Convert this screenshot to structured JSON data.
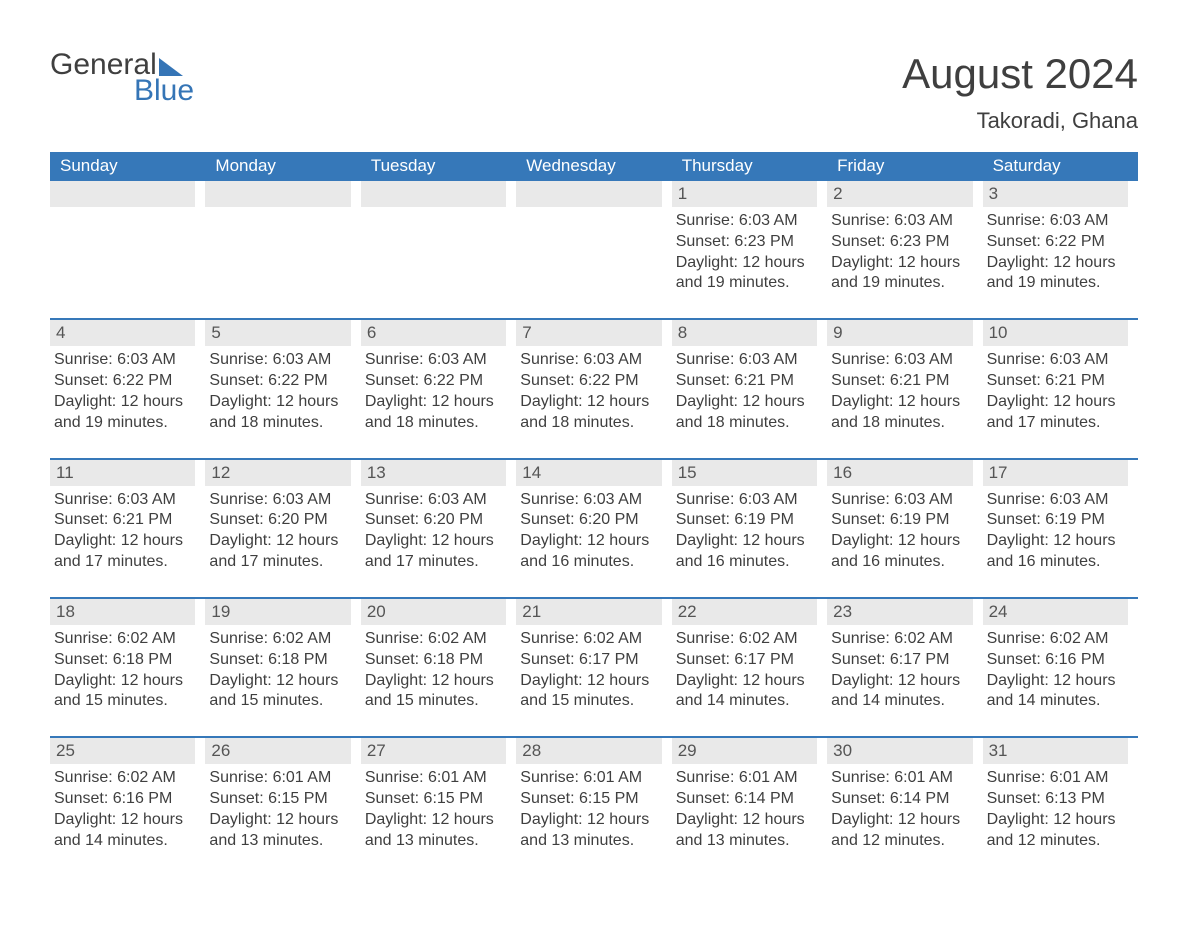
{
  "logo": {
    "word1": "General",
    "word2": "Blue"
  },
  "title": "August 2024",
  "location": "Takoradi, Ghana",
  "colors": {
    "header_bg": "#3678b9",
    "header_text": "#ffffff",
    "rule": "#3678b9",
    "daynum_bg": "#e9e9e9",
    "body_text": "#3f3f3f",
    "logo_blue": "#3575b6"
  },
  "days_of_week": [
    "Sunday",
    "Monday",
    "Tuesday",
    "Wednesday",
    "Thursday",
    "Friday",
    "Saturday"
  ],
  "weeks": [
    [
      null,
      null,
      null,
      null,
      {
        "n": "1",
        "sunrise": "6:03 AM",
        "sunset": "6:23 PM",
        "daylight": "12 hours and 19 minutes."
      },
      {
        "n": "2",
        "sunrise": "6:03 AM",
        "sunset": "6:23 PM",
        "daylight": "12 hours and 19 minutes."
      },
      {
        "n": "3",
        "sunrise": "6:03 AM",
        "sunset": "6:22 PM",
        "daylight": "12 hours and 19 minutes."
      }
    ],
    [
      {
        "n": "4",
        "sunrise": "6:03 AM",
        "sunset": "6:22 PM",
        "daylight": "12 hours and 19 minutes."
      },
      {
        "n": "5",
        "sunrise": "6:03 AM",
        "sunset": "6:22 PM",
        "daylight": "12 hours and 18 minutes."
      },
      {
        "n": "6",
        "sunrise": "6:03 AM",
        "sunset": "6:22 PM",
        "daylight": "12 hours and 18 minutes."
      },
      {
        "n": "7",
        "sunrise": "6:03 AM",
        "sunset": "6:22 PM",
        "daylight": "12 hours and 18 minutes."
      },
      {
        "n": "8",
        "sunrise": "6:03 AM",
        "sunset": "6:21 PM",
        "daylight": "12 hours and 18 minutes."
      },
      {
        "n": "9",
        "sunrise": "6:03 AM",
        "sunset": "6:21 PM",
        "daylight": "12 hours and 18 minutes."
      },
      {
        "n": "10",
        "sunrise": "6:03 AM",
        "sunset": "6:21 PM",
        "daylight": "12 hours and 17 minutes."
      }
    ],
    [
      {
        "n": "11",
        "sunrise": "6:03 AM",
        "sunset": "6:21 PM",
        "daylight": "12 hours and 17 minutes."
      },
      {
        "n": "12",
        "sunrise": "6:03 AM",
        "sunset": "6:20 PM",
        "daylight": "12 hours and 17 minutes."
      },
      {
        "n": "13",
        "sunrise": "6:03 AM",
        "sunset": "6:20 PM",
        "daylight": "12 hours and 17 minutes."
      },
      {
        "n": "14",
        "sunrise": "6:03 AM",
        "sunset": "6:20 PM",
        "daylight": "12 hours and 16 minutes."
      },
      {
        "n": "15",
        "sunrise": "6:03 AM",
        "sunset": "6:19 PM",
        "daylight": "12 hours and 16 minutes."
      },
      {
        "n": "16",
        "sunrise": "6:03 AM",
        "sunset": "6:19 PM",
        "daylight": "12 hours and 16 minutes."
      },
      {
        "n": "17",
        "sunrise": "6:03 AM",
        "sunset": "6:19 PM",
        "daylight": "12 hours and 16 minutes."
      }
    ],
    [
      {
        "n": "18",
        "sunrise": "6:02 AM",
        "sunset": "6:18 PM",
        "daylight": "12 hours and 15 minutes."
      },
      {
        "n": "19",
        "sunrise": "6:02 AM",
        "sunset": "6:18 PM",
        "daylight": "12 hours and 15 minutes."
      },
      {
        "n": "20",
        "sunrise": "6:02 AM",
        "sunset": "6:18 PM",
        "daylight": "12 hours and 15 minutes."
      },
      {
        "n": "21",
        "sunrise": "6:02 AM",
        "sunset": "6:17 PM",
        "daylight": "12 hours and 15 minutes."
      },
      {
        "n": "22",
        "sunrise": "6:02 AM",
        "sunset": "6:17 PM",
        "daylight": "12 hours and 14 minutes."
      },
      {
        "n": "23",
        "sunrise": "6:02 AM",
        "sunset": "6:17 PM",
        "daylight": "12 hours and 14 minutes."
      },
      {
        "n": "24",
        "sunrise": "6:02 AM",
        "sunset": "6:16 PM",
        "daylight": "12 hours and 14 minutes."
      }
    ],
    [
      {
        "n": "25",
        "sunrise": "6:02 AM",
        "sunset": "6:16 PM",
        "daylight": "12 hours and 14 minutes."
      },
      {
        "n": "26",
        "sunrise": "6:01 AM",
        "sunset": "6:15 PM",
        "daylight": "12 hours and 13 minutes."
      },
      {
        "n": "27",
        "sunrise": "6:01 AM",
        "sunset": "6:15 PM",
        "daylight": "12 hours and 13 minutes."
      },
      {
        "n": "28",
        "sunrise": "6:01 AM",
        "sunset": "6:15 PM",
        "daylight": "12 hours and 13 minutes."
      },
      {
        "n": "29",
        "sunrise": "6:01 AM",
        "sunset": "6:14 PM",
        "daylight": "12 hours and 13 minutes."
      },
      {
        "n": "30",
        "sunrise": "6:01 AM",
        "sunset": "6:14 PM",
        "daylight": "12 hours and 12 minutes."
      },
      {
        "n": "31",
        "sunrise": "6:01 AM",
        "sunset": "6:13 PM",
        "daylight": "12 hours and 12 minutes."
      }
    ]
  ],
  "labels": {
    "sunrise": "Sunrise:",
    "sunset": "Sunset:",
    "daylight": "Daylight:"
  }
}
